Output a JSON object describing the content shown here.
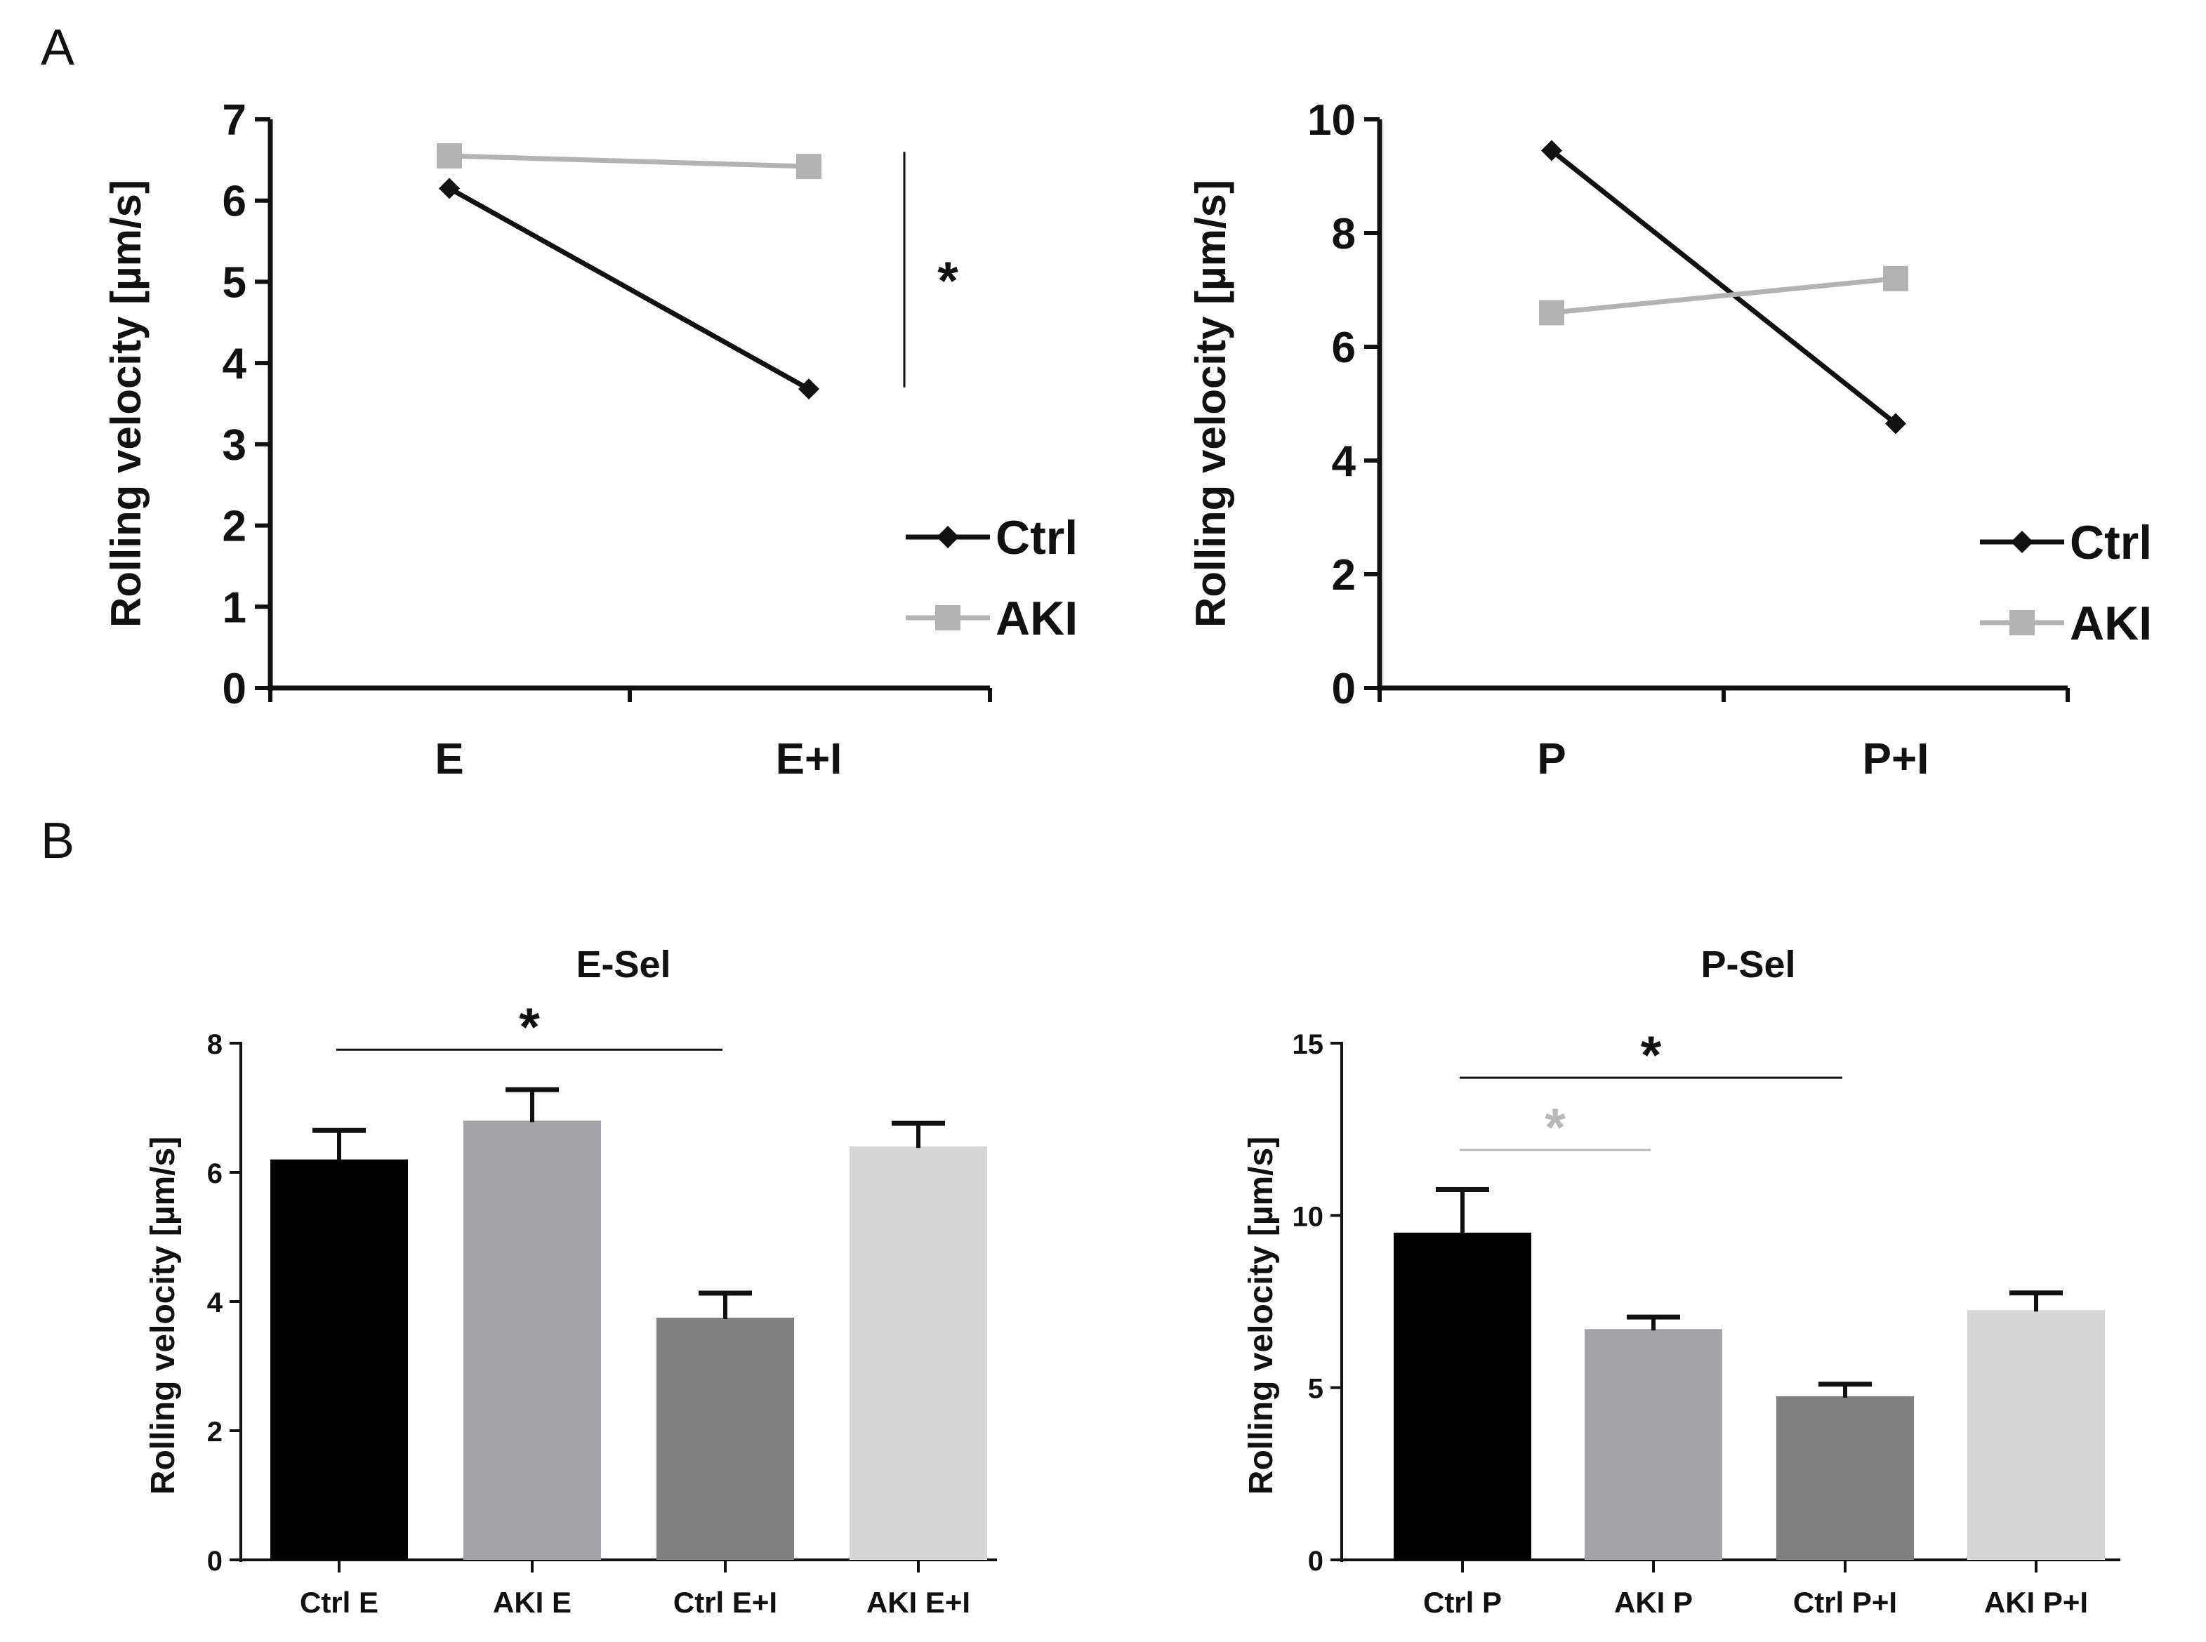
{
  "panel_labels": [
    "A",
    "B"
  ],
  "chart_data": [
    {
      "type": "line",
      "panel": "A",
      "categories": [
        "E",
        "E+I"
      ],
      "ylabel": "Rolling velocity [µm/s]",
      "ylim": [
        0,
        7
      ],
      "yticks": [
        "0",
        "1",
        "2",
        "3",
        "4",
        "5",
        "6",
        "7"
      ],
      "series": [
        {
          "name": "Ctrl",
          "values": [
            6.15,
            3.68
          ],
          "color": "#111111",
          "marker": "diamond"
        },
        {
          "name": "AKI",
          "values": [
            6.55,
            6.42
          ],
          "color": "#b3b3b3",
          "marker": "square"
        }
      ],
      "significance": {
        "label": "*",
        "color": "#111111",
        "from": 3.7,
        "to": 6.6
      },
      "legend": "right"
    },
    {
      "type": "line",
      "panel": "A",
      "categories": [
        "P",
        "P+I"
      ],
      "ylabel": "Rolling velocity [µm/s]",
      "ylim": [
        0,
        10
      ],
      "yticks": [
        "0",
        "2",
        "4",
        "6",
        "8",
        "10"
      ],
      "series": [
        {
          "name": "Ctrl",
          "values": [
            9.45,
            4.65
          ],
          "color": "#111111",
          "marker": "diamond"
        },
        {
          "name": "AKI",
          "values": [
            6.6,
            7.2
          ],
          "color": "#b3b3b3",
          "marker": "square"
        }
      ],
      "legend": "right"
    },
    {
      "type": "bar",
      "panel": "B",
      "title": "E-Sel",
      "categories": [
        "Ctrl E",
        "AKI E",
        "Ctrl E+I",
        "AKI E+I"
      ],
      "values": [
        6.2,
        6.8,
        3.75,
        6.4
      ],
      "errors": [
        0.45,
        0.48,
        0.38,
        0.36
      ],
      "colors": [
        "#000000",
        "#a3a3a7",
        "#808080",
        "#d6d6d6"
      ],
      "ylabel": "Rolling velocity [µm/s]",
      "ylim": [
        0,
        8
      ],
      "yticks": [
        "0",
        "2",
        "4",
        "6",
        "8"
      ],
      "significance": [
        {
          "label": "*",
          "from": 0,
          "to": 2,
          "level": 7.9,
          "color": "#111111"
        }
      ]
    },
    {
      "type": "bar",
      "panel": "B",
      "title": "P-Sel",
      "categories": [
        "Ctrl P",
        "AKI P",
        "Ctrl P+I",
        "AKI P+I"
      ],
      "values": [
        9.5,
        6.7,
        4.75,
        7.25
      ],
      "errors": [
        1.25,
        0.35,
        0.35,
        0.5
      ],
      "colors": [
        "#000000",
        "#a3a3a7",
        "#808080",
        "#d6d6d6"
      ],
      "ylabel": "Rolling velocity [µm/s]",
      "ylim": [
        0,
        15
      ],
      "yticks": [
        "0",
        "5",
        "10",
        "15"
      ],
      "significance": [
        {
          "label": "*",
          "from": 0,
          "to": 2,
          "level": 14.0,
          "color": "#111111"
        },
        {
          "label": "*",
          "from": 0,
          "to": 1,
          "level": 11.9,
          "color": "#b8b8b8"
        }
      ]
    }
  ]
}
